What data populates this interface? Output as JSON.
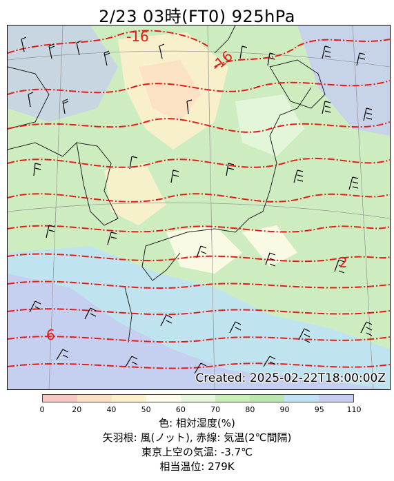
{
  "title": "2/23  03時(FT0)    925hPa",
  "created": "Created: 2025-02-22T18:00:00Z",
  "contour_labels": [
    "-16",
    "-16",
    "2",
    "6"
  ],
  "colorbar": {
    "ticks": [
      "0",
      "20",
      "40",
      "50",
      "60",
      "70",
      "80",
      "90",
      "95",
      "110"
    ],
    "colors": [
      "#f8c6c0",
      "#fbe0c4",
      "#fdf1cc",
      "#fefbe8",
      "#e6f7dc",
      "#c8efb6",
      "#b8e8ae",
      "#bfe3f4",
      "#c6cdf1"
    ]
  },
  "legend": {
    "line1": "色: 相対湿度(%)",
    "line2": "矢羽根: 風(ノット), 赤線: 気温(2℃間隔)",
    "line3": "東京上空の気温: -3.7℃",
    "line4": "相当温位: 279K"
  }
}
